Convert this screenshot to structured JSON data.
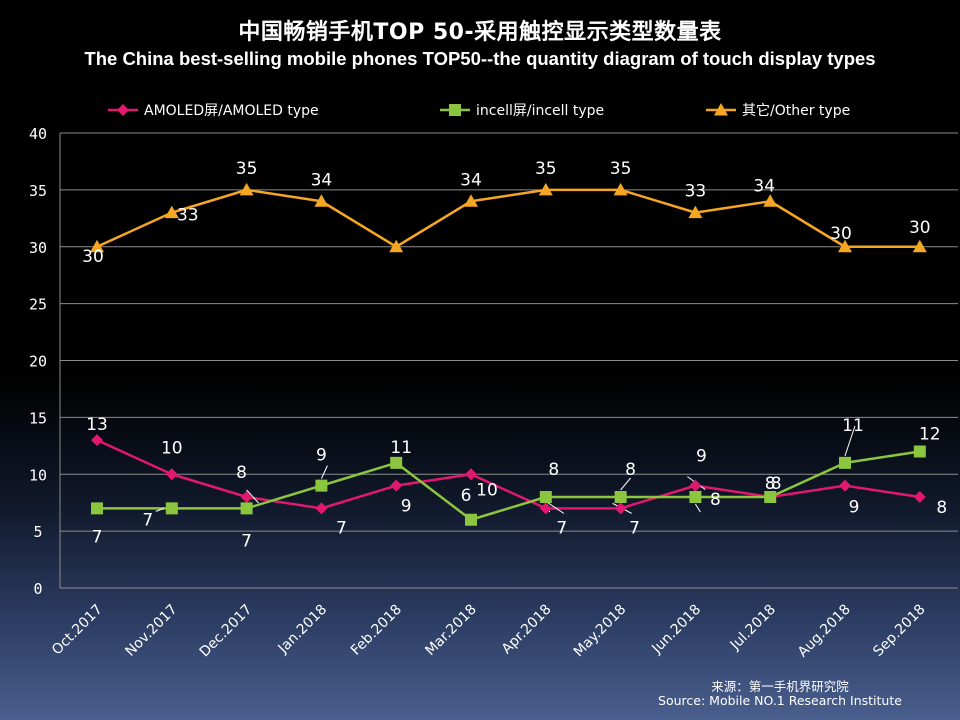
{
  "chart_data": {
    "type": "line",
    "title": "中国畅销手机TOP 50-采用触控显示类型数量表",
    "subtitle": "The China best-selling mobile phones TOP50--the quantity diagram of touch display types",
    "categories": [
      "Oct.2017",
      "Nov.2017",
      "Dec.2017",
      "Jan.2018",
      "Feb.2018",
      "Mar.2018",
      "Apr.2018",
      "May.2018",
      "Jun.2018",
      "Jul.2018",
      "Aug.2018",
      "Sep.2018"
    ],
    "series": [
      {
        "name": "AMOLED屏/AMOLED type",
        "color": "#e0186e",
        "marker": "diamond",
        "values": [
          13,
          10,
          8,
          7,
          9,
          10,
          7,
          7,
          9,
          8,
          9,
          8
        ]
      },
      {
        "name": "incell屏/incell type",
        "color": "#8cc63f",
        "marker": "square",
        "values": [
          7,
          7,
          7,
          9,
          11,
          6,
          8,
          8,
          8,
          8,
          11,
          12
        ]
      },
      {
        "name": "其它/Other type",
        "color": "#f5a623",
        "marker": "triangle",
        "values": [
          30,
          33,
          35,
          34,
          30,
          34,
          35,
          35,
          33,
          34,
          30,
          30
        ]
      }
    ],
    "ylim": [
      0,
      40
    ],
    "yticks": [
      0,
      5,
      10,
      15,
      20,
      25,
      30,
      35,
      40
    ],
    "grid": "horizontal",
    "legend": "top",
    "source": [
      "来源：第一手机界研究院",
      "Source: Mobile NO.1 Research Institute"
    ]
  }
}
